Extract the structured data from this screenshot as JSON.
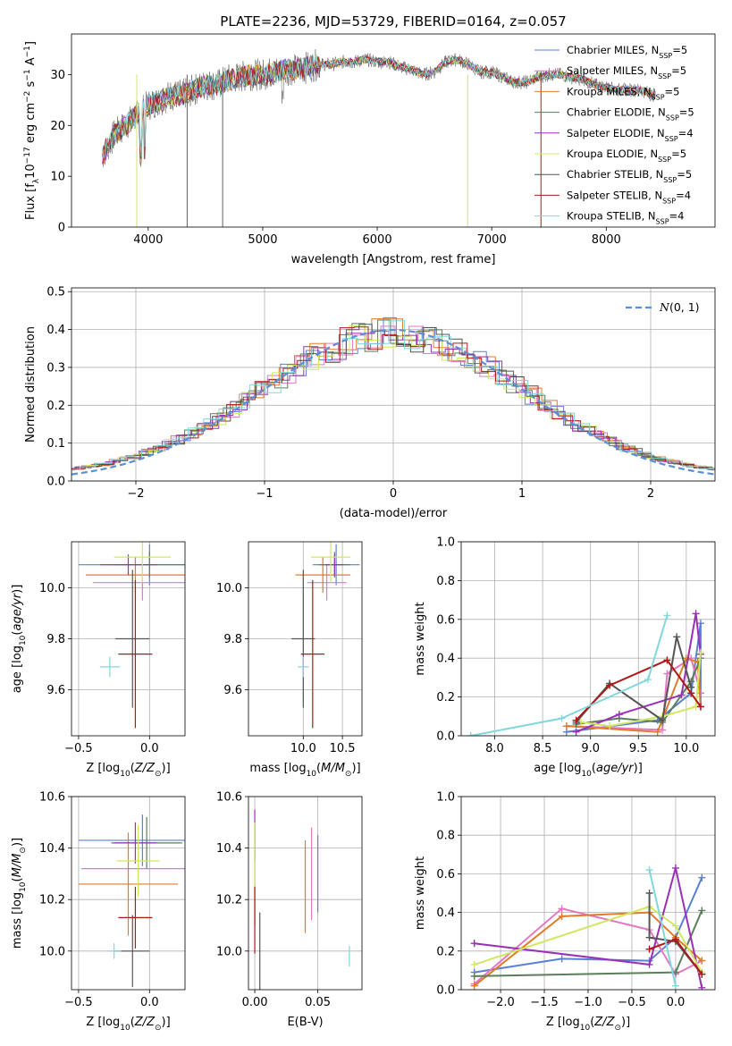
{
  "figure": {
    "title": "PLATE=2236, MJD=53729, FIBERID=0164, z=0.057"
  },
  "colors": {
    "chabrier_miles": "#5b7fd6",
    "salpeter_miles": "#e377c2",
    "kroupa_miles": "#e07b28",
    "chabrier_elodie": "#5a7f5a",
    "salpeter_elodie": "#9a30b8",
    "kroupa_elodie": "#d0e860",
    "chabrier_stelib": "#555555",
    "salpeter_stelib": "#b01818",
    "kroupa_stelib": "#80d8dc",
    "data": "#606060"
  },
  "chart_data": [
    {
      "id": "spectrum",
      "type": "line",
      "xlabel": "wavelength [Angstrom, rest frame]",
      "ylabel": "Flux [fλ10⁻¹⁷ erg cm⁻² s⁻¹ A⁻¹]",
      "xlim": [
        3330,
        8950
      ],
      "ylim": [
        0,
        38
      ],
      "xticks": [
        4000,
        5000,
        6000,
        7000,
        8000
      ],
      "yticks": [
        0,
        10,
        20,
        30
      ],
      "grid": false,
      "legend_position": "top-right",
      "continuum": {
        "x": [
          3600,
          3700,
          3800,
          3900,
          4000,
          4100,
          4200,
          4300,
          4400,
          4500,
          4600,
          4700,
          4800,
          4900,
          5000,
          5100,
          5200,
          5300,
          5400,
          5500,
          5600,
          5700,
          5800,
          5900,
          6000,
          6100,
          6200,
          6300,
          6400,
          6500,
          6600,
          6700,
          6800,
          6900,
          7000,
          7100,
          7200,
          7300,
          7400,
          7500,
          7600,
          7700,
          7800,
          7900,
          8000,
          8100,
          8200,
          8300,
          8400
        ],
        "y": [
          14,
          18,
          20,
          22,
          24,
          25,
          26,
          26,
          27,
          28,
          28,
          29,
          29.5,
          30,
          30,
          30.5,
          31,
          31,
          31.5,
          32,
          32,
          32.5,
          32.5,
          33,
          32.5,
          32.5,
          31.5,
          31,
          30,
          30.5,
          32.5,
          33,
          32,
          30.5,
          30.5,
          29.5,
          28.5,
          28.5,
          29.5,
          30,
          30,
          29.5,
          29,
          28,
          27.5,
          27,
          27,
          27,
          26
        ]
      },
      "series": [
        {
          "name": "Chabrier MILES, N_SSP=5",
          "color_key": "chabrier_miles"
        },
        {
          "name": "Salpeter MILES, N_SSP=5",
          "color_key": "salpeter_miles"
        },
        {
          "name": "Kroupa MILES, N_SSP=5",
          "color_key": "kroupa_miles"
        },
        {
          "name": "Chabrier ELODIE, N_SSP=5",
          "color_key": "chabrier_elodie"
        },
        {
          "name": "Salpeter ELODIE, N_SSP=4",
          "color_key": "salpeter_elodie"
        },
        {
          "name": "Kroupa ELODIE, N_SSP=5",
          "color_key": "kroupa_elodie"
        },
        {
          "name": "Chabrier STELIB, N_SSP=5",
          "color_key": "chabrier_stelib"
        },
        {
          "name": "Salpeter STELIB, N_SSP=4",
          "color_key": "salpeter_stelib"
        },
        {
          "name": "Kroupa STELIB, N_SSP=4",
          "color_key": "kroupa_stelib"
        }
      ]
    },
    {
      "id": "residuals",
      "type": "line",
      "xlabel": "(data-model)/error",
      "ylabel": "Normed distribution",
      "xlim": [
        -2.5,
        2.5
      ],
      "ylim": [
        0,
        0.51
      ],
      "xticks": [
        -2,
        -1,
        0,
        1,
        2
      ],
      "yticks": [
        0.0,
        0.1,
        0.2,
        0.3,
        0.4,
        0.5
      ],
      "grid": true,
      "legend": "N(0,1)",
      "legend_position": "top-right",
      "gaussian": {
        "mean": 0,
        "sigma": 1
      }
    },
    {
      "id": "age_vs_Z",
      "type": "scatter",
      "xlabel": "Z [log10(Z/Z⊙)]",
      "ylabel": "age  [log10(age/yr)]",
      "xlim": [
        -0.55,
        0.25
      ],
      "ylim": [
        9.42,
        10.18
      ],
      "xticks": [
        -0.5,
        0.0
      ],
      "yticks": [
        9.6,
        9.8,
        10.0
      ],
      "grid": true,
      "points": [
        {
          "c": "chabrier_miles",
          "x": 0.0,
          "xerr": 0.5,
          "y": 10.09,
          "yerr": 0.08
        },
        {
          "c": "salpeter_miles",
          "x": -0.05,
          "xerr": 0.35,
          "y": 10.02,
          "yerr": 0.07
        },
        {
          "c": "kroupa_miles",
          "x": -0.1,
          "xerr": 0.35,
          "y": 10.05,
          "yerr": 0.07
        },
        {
          "c": "chabrier_elodie",
          "x": 0.0,
          "xerr": 0.25,
          "y": 10.09,
          "yerr": 0.05
        },
        {
          "c": "salpeter_elodie",
          "x": -0.15,
          "xerr": 0.2,
          "y": 10.09,
          "yerr": 0.04
        },
        {
          "c": "kroupa_elodie",
          "x": -0.05,
          "xerr": 0.2,
          "y": 10.12,
          "yerr": 0.1
        },
        {
          "c": "chabrier_stelib",
          "x": -0.12,
          "xerr": 0.12,
          "y": 9.8,
          "yerr": 0.27
        },
        {
          "c": "salpeter_stelib",
          "x": -0.1,
          "xerr": 0.12,
          "y": 9.74,
          "yerr": 0.29
        },
        {
          "c": "kroupa_stelib",
          "x": -0.28,
          "xerr": 0.07,
          "y": 9.69,
          "yerr": 0.04
        }
      ]
    },
    {
      "id": "age_vs_mass",
      "type": "scatter",
      "xlabel": "mass [log10(M/M⊙)]",
      "ylabel": "",
      "xlim": [
        9.3,
        10.75
      ],
      "ylim": [
        9.42,
        10.18
      ],
      "xticks": [
        10.0,
        10.5
      ],
      "yticks": [
        9.6,
        9.8,
        10.0
      ],
      "grid": true,
      "points": [
        {
          "c": "chabrier_miles",
          "x": 10.42,
          "xerr": 0.3,
          "y": 10.09,
          "yerr": 0.08
        },
        {
          "c": "salpeter_miles",
          "x": 10.3,
          "xerr": 0.25,
          "y": 10.02,
          "yerr": 0.07
        },
        {
          "c": "kroupa_miles",
          "x": 10.25,
          "xerr": 0.35,
          "y": 10.05,
          "yerr": 0.07
        },
        {
          "c": "chabrier_elodie",
          "x": 10.4,
          "xerr": 0.2,
          "y": 10.09,
          "yerr": 0.05
        },
        {
          "c": "salpeter_elodie",
          "x": 10.4,
          "xerr": 0.12,
          "y": 10.09,
          "yerr": 0.04
        },
        {
          "c": "kroupa_elodie",
          "x": 10.35,
          "xerr": 0.25,
          "y": 10.12,
          "yerr": 0.1
        },
        {
          "c": "chabrier_stelib",
          "x": 10.0,
          "xerr": 0.15,
          "y": 9.8,
          "yerr": 0.27
        },
        {
          "c": "salpeter_stelib",
          "x": 10.12,
          "xerr": 0.15,
          "y": 9.74,
          "yerr": 0.29
        },
        {
          "c": "kroupa_stelib",
          "x": 10.0,
          "xerr": 0.07,
          "y": 9.69,
          "yerr": 0.04
        }
      ]
    },
    {
      "id": "massweight_vs_age",
      "type": "line",
      "xlabel": "age  [log10(age/yr)]",
      "ylabel": "mass weight",
      "xlim": [
        7.65,
        10.3
      ],
      "ylim": [
        0,
        1.0
      ],
      "xticks": [
        8.0,
        8.5,
        9.0,
        9.5,
        10.0
      ],
      "yticks": [
        0.0,
        0.2,
        0.4,
        0.6,
        0.8,
        1.0
      ],
      "grid": true,
      "series": [
        {
          "c": "chabrier_miles",
          "x": [
            8.75,
            9.7,
            10.05,
            10.15,
            10.15
          ],
          "y": [
            0.02,
            0.08,
            0.22,
            0.58,
            0.15
          ]
        },
        {
          "c": "salpeter_miles",
          "x": [
            8.75,
            9.75,
            9.8,
            10.05,
            10.15
          ],
          "y": [
            0.05,
            0.03,
            0.32,
            0.4,
            0.22
          ]
        },
        {
          "c": "kroupa_miles",
          "x": [
            8.75,
            9.7,
            10.0,
            10.12,
            10.15
          ],
          "y": [
            0.05,
            0.02,
            0.4,
            0.38,
            0.15
          ]
        },
        {
          "c": "chabrier_elodie",
          "x": [
            8.85,
            9.3,
            9.75,
            10.05,
            10.15
          ],
          "y": [
            0.06,
            0.09,
            0.07,
            0.28,
            0.4
          ]
        },
        {
          "c": "salpeter_elodie",
          "x": [
            8.85,
            9.3,
            9.95,
            10.1,
            10.15
          ],
          "y": [
            0.02,
            0.11,
            0.21,
            0.63,
            0.42
          ]
        },
        {
          "c": "kroupa_elodie",
          "x": [
            8.9,
            9.2,
            9.75,
            10.1,
            10.15
          ],
          "y": [
            0.07,
            0.05,
            0.1,
            0.15,
            0.43
          ]
        },
        {
          "c": "chabrier_stelib",
          "x": [
            8.85,
            9.2,
            9.75,
            9.9,
            10.05
          ],
          "y": [
            0.07,
            0.27,
            0.08,
            0.51,
            0.25
          ]
        },
        {
          "c": "salpeter_stelib",
          "x": [
            8.85,
            9.2,
            9.8,
            10.05,
            10.15
          ],
          "y": [
            0.08,
            0.26,
            0.39,
            0.22,
            0.15
          ]
        },
        {
          "c": "kroupa_stelib",
          "x": [
            7.75,
            8.7,
            9.6,
            9.8
          ],
          "y": [
            0.0,
            0.09,
            0.29,
            0.62
          ]
        }
      ]
    },
    {
      "id": "mass_vs_Z",
      "type": "scatter",
      "xlabel": "Z [log10(Z/Z⊙)]",
      "ylabel": "mass [log10(M/M⊙)]",
      "xlim": [
        -0.55,
        0.25
      ],
      "ylim": [
        9.85,
        10.6
      ],
      "xticks": [
        -0.5,
        0.0
      ],
      "yticks": [
        10.0,
        10.2,
        10.4,
        10.6
      ],
      "grid": true,
      "points": [
        {
          "c": "chabrier_miles",
          "x": -0.05,
          "xerr": 0.45,
          "y": 10.43,
          "yerr": 0.1
        },
        {
          "c": "salpeter_miles",
          "x": -0.08,
          "xerr": 0.4,
          "y": 10.32,
          "yerr": 0.1
        },
        {
          "c": "kroupa_miles",
          "x": -0.15,
          "xerr": 0.35,
          "y": 10.26,
          "yerr": 0.2
        },
        {
          "c": "chabrier_elodie",
          "x": -0.02,
          "xerr": 0.25,
          "y": 10.42,
          "yerr": 0.1
        },
        {
          "c": "salpeter_elodie",
          "x": -0.1,
          "xerr": 0.15,
          "y": 10.42,
          "yerr": 0.08
        },
        {
          "c": "kroupa_elodie",
          "x": -0.08,
          "xerr": 0.15,
          "y": 10.35,
          "yerr": 0.14
        },
        {
          "c": "chabrier_stelib",
          "x": -0.12,
          "xerr": 0.12,
          "y": 10.0,
          "yerr": 0.14
        },
        {
          "c": "salpeter_stelib",
          "x": -0.1,
          "xerr": 0.12,
          "y": 10.13,
          "yerr": 0.12
        },
        {
          "c": "kroupa_stelib",
          "x": -0.25,
          "xerr": 0.05,
          "y": 10.0,
          "yerr": 0.03
        }
      ]
    },
    {
      "id": "mass_vs_ebv",
      "type": "scatter",
      "xlabel": "E(B-V)",
      "ylabel": "",
      "xlim": [
        -0.005,
        0.085
      ],
      "ylim": [
        9.85,
        10.6
      ],
      "xticks": [
        0.0,
        0.05
      ],
      "yticks": [
        10.0,
        10.2,
        10.4,
        10.6
      ],
      "grid": true,
      "points": [
        {
          "c": "chabrier_miles",
          "x": 0.05,
          "xerr": 0.0,
          "y": 10.3,
          "yerr": 0.15
        },
        {
          "c": "salpeter_miles",
          "x": 0.045,
          "xerr": 0.0,
          "y": 10.3,
          "yerr": 0.18
        },
        {
          "c": "kroupa_miles",
          "x": 0.04,
          "xerr": 0.0,
          "y": 10.25,
          "yerr": 0.18
        },
        {
          "c": "chabrier_elodie",
          "x": 0.0,
          "xerr": 0.0,
          "y": 10.3,
          "yerr": 0.2
        },
        {
          "c": "salpeter_elodie",
          "x": 0.0,
          "xerr": 0.0,
          "y": 10.45,
          "yerr": 0.1
        },
        {
          "c": "kroupa_elodie",
          "x": 0.0,
          "xerr": 0.0,
          "y": 10.35,
          "yerr": 0.15
        },
        {
          "c": "chabrier_stelib",
          "x": 0.004,
          "xerr": 0.0,
          "y": 10.0,
          "yerr": 0.15
        },
        {
          "c": "salpeter_stelib",
          "x": 0.0,
          "xerr": 0.0,
          "y": 10.12,
          "yerr": 0.13
        },
        {
          "c": "kroupa_stelib",
          "x": 0.075,
          "xerr": 0.0,
          "y": 9.98,
          "yerr": 0.04
        }
      ]
    },
    {
      "id": "massweight_vs_Z",
      "type": "line",
      "xlabel": "Z [log10(Z/Z⊙)]",
      "ylabel": "mass weight",
      "xlim": [
        -2.45,
        0.45
      ],
      "ylim": [
        0,
        1.0
      ],
      "xticks": [
        -2.0,
        -1.5,
        -1.0,
        -0.5,
        0.0
      ],
      "yticks": [
        0.0,
        0.2,
        0.4,
        0.6,
        0.8,
        1.0
      ],
      "grid": true,
      "series": [
        {
          "c": "chabrier_miles",
          "x": [
            -2.3,
            -1.3,
            -0.3,
            0.0,
            0.3
          ],
          "y": [
            0.09,
            0.16,
            0.15,
            0.27,
            0.58
          ]
        },
        {
          "c": "salpeter_miles",
          "x": [
            -2.3,
            -1.3,
            -0.3,
            0.0,
            0.3
          ],
          "y": [
            0.03,
            0.42,
            0.31,
            0.08,
            0.15
          ]
        },
        {
          "c": "kroupa_miles",
          "x": [
            -2.3,
            -1.3,
            -0.3,
            0.0,
            0.3
          ],
          "y": [
            0.02,
            0.38,
            0.4,
            0.27,
            0.15
          ]
        },
        {
          "c": "chabrier_elodie",
          "x": [
            -2.3,
            0.0,
            0.3
          ],
          "y": [
            0.07,
            0.09,
            0.41
          ]
        },
        {
          "c": "salpeter_elodie",
          "x": [
            -2.3,
            -0.3,
            0.0,
            0.3
          ],
          "y": [
            0.24,
            0.13,
            0.63,
            0.01
          ]
        },
        {
          "c": "kroupa_elodie",
          "x": [
            -2.3,
            -0.3,
            0.0,
            0.3
          ],
          "y": [
            0.13,
            0.43,
            0.33,
            0.09
          ]
        },
        {
          "c": "chabrier_stelib",
          "x": [
            -0.3,
            -0.3,
            0.0,
            0.3
          ],
          "y": [
            0.5,
            0.27,
            0.25,
            0.08
          ]
        },
        {
          "c": "salpeter_stelib",
          "x": [
            -0.3,
            0.0,
            0.3
          ],
          "y": [
            0.21,
            0.26,
            0.08
          ]
        },
        {
          "c": "kroupa_stelib",
          "x": [
            -0.3,
            0.0
          ],
          "y": [
            0.62,
            0.02
          ]
        }
      ]
    }
  ]
}
